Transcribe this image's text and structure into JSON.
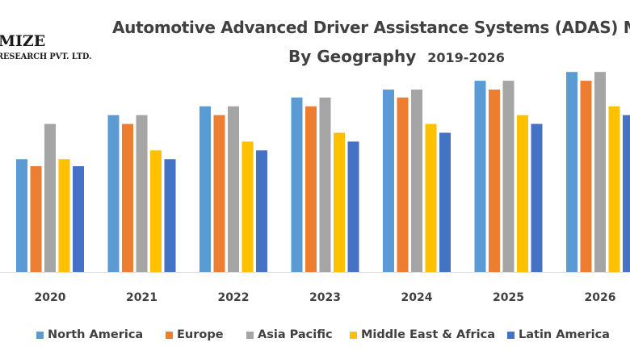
{
  "logo": {
    "line1": "MIZE",
    "line2": "RESEARCH PVT. LTD."
  },
  "chart_data": {
    "type": "bar",
    "title": "Automotive Advanced Driver Assistance Systems (ADAS) M",
    "subtitle": "By Geography",
    "period": "2019-2026",
    "xlabel": "",
    "ylabel": "",
    "grid": false,
    "legend_position": "bottom",
    "ylim": [
      0,
      24
    ],
    "categories": [
      "2020",
      "2021",
      "2022",
      "2023",
      "2024",
      "2025",
      "2026"
    ],
    "series": [
      {
        "name": "North America",
        "color": "#5b9bd5",
        "values": [
          12.8,
          17.8,
          18.8,
          19.8,
          20.7,
          21.7,
          22.7
        ]
      },
      {
        "name": "Europe",
        "color": "#ed7d31",
        "values": [
          12.0,
          16.8,
          17.8,
          18.8,
          19.8,
          20.7,
          21.7
        ]
      },
      {
        "name": "Asia Pacific",
        "color": "#a5a5a5",
        "values": [
          16.8,
          17.8,
          18.8,
          19.8,
          20.7,
          21.7,
          22.7
        ]
      },
      {
        "name": "Middle East & Africa",
        "color": "#ffc000",
        "values": [
          12.8,
          13.8,
          14.8,
          15.8,
          16.8,
          17.8,
          18.8
        ]
      },
      {
        "name": "Latin America",
        "color": "#4472c4",
        "values": [
          12.0,
          12.8,
          13.8,
          14.8,
          15.8,
          16.8,
          17.8
        ]
      }
    ]
  }
}
